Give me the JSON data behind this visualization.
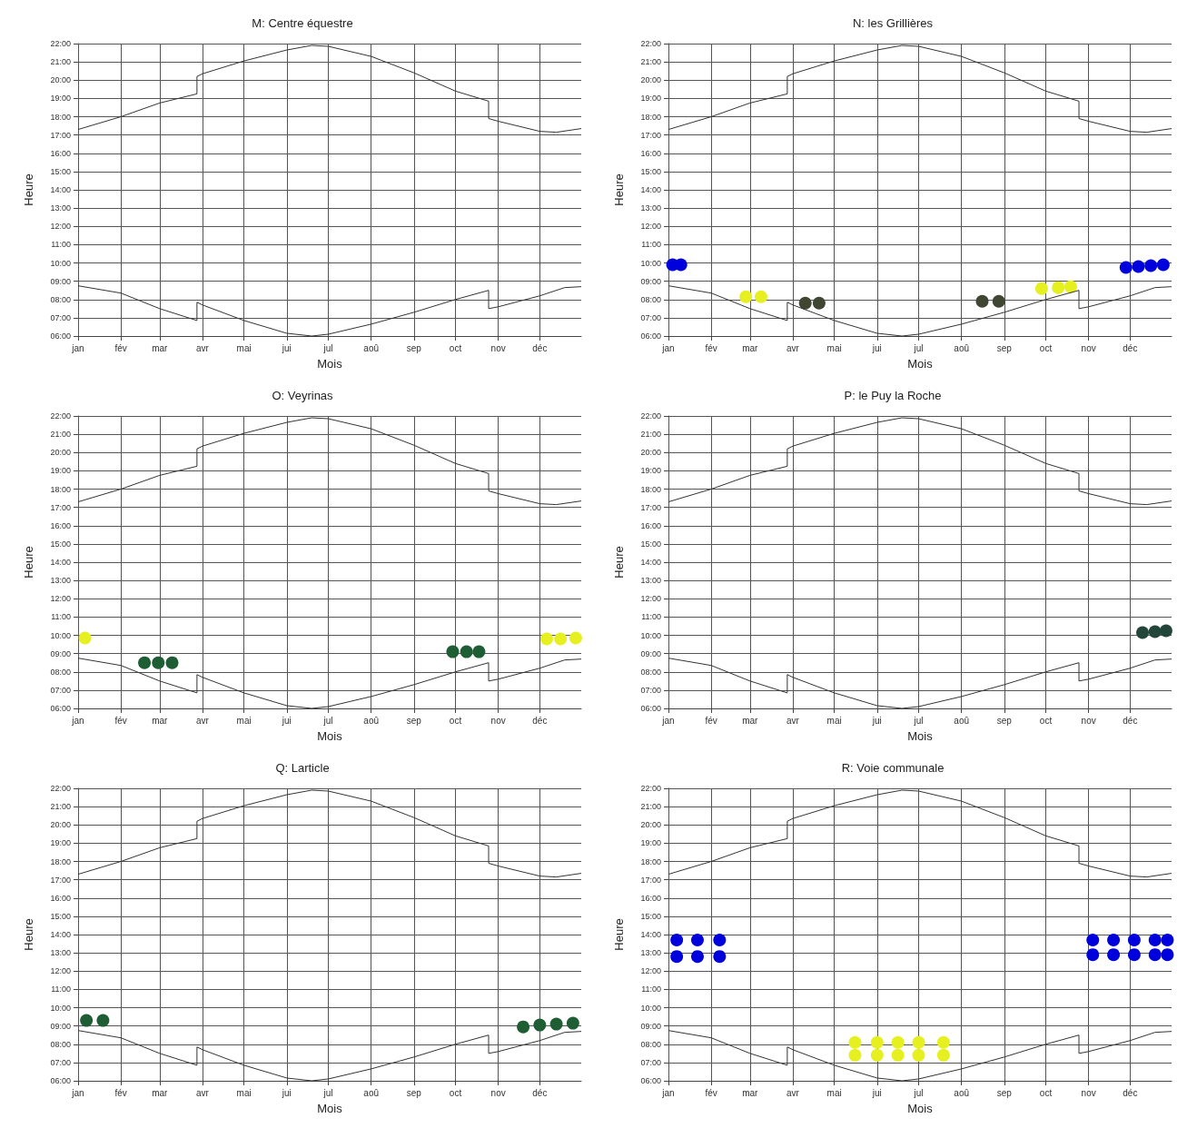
{
  "chart_data": [
    {
      "type": "line",
      "title": "M: Centre équestre",
      "xlabel": "Mois",
      "ylabel": "Heure",
      "grid": true,
      "xlim": [
        "--01-01",
        "--12-31"
      ],
      "xticks": [
        {
          "value": "--01-01",
          "label": "jan"
        },
        {
          "value": "--02-01",
          "label": "fév"
        },
        {
          "value": "--03-01",
          "label": "mar"
        },
        {
          "value": "--04-01",
          "label": "avr"
        },
        {
          "value": "--05-01",
          "label": "mai"
        },
        {
          "value": "--06-01",
          "label": "jui"
        },
        {
          "value": "--07-01",
          "label": "jul"
        },
        {
          "value": "--08-01",
          "label": "aoû"
        },
        {
          "value": "--09-01",
          "label": "sep"
        },
        {
          "value": "--10-01",
          "label": "oct"
        },
        {
          "value": "--11-01",
          "label": "nov"
        },
        {
          "value": "--12-01",
          "label": "déc"
        }
      ],
      "ylim": [
        6,
        22
      ],
      "yticks": [
        {
          "value": 6,
          "label": "06:00"
        },
        {
          "value": 7,
          "label": "07:00"
        },
        {
          "value": 8,
          "label": "08:00"
        },
        {
          "value": 9,
          "label": "09:00"
        },
        {
          "value": 10,
          "label": "10:00"
        },
        {
          "value": 11,
          "label": "11:00"
        },
        {
          "value": 12,
          "label": "12:00"
        },
        {
          "value": 13,
          "label": "13:00"
        },
        {
          "value": 14,
          "label": "14:00"
        },
        {
          "value": 15,
          "label": "15:00"
        },
        {
          "value": 16,
          "label": "16:00"
        },
        {
          "value": 17,
          "label": "17:00"
        },
        {
          "value": 18,
          "label": "18:00"
        },
        {
          "value": 19,
          "label": "19:00"
        },
        {
          "value": 20,
          "label": "20:00"
        },
        {
          "value": 21,
          "label": "21:00"
        },
        {
          "value": 22,
          "label": "22:00"
        }
      ],
      "series": [
        {
          "type": "line",
          "color": "#333333",
          "marker": "none",
          "x": [
            "--01-01",
            "--02-01",
            "--03-01",
            "--03-28",
            "--03-28",
            "--04-01",
            "--05-01",
            "--06-01",
            "--06-19",
            "--07-01",
            "--08-01",
            "--09-01",
            "--10-01",
            "--10-25",
            "--10-25",
            "--11-01",
            "--12-01",
            "--12-13",
            "--12-31"
          ],
          "values": [
            17.3,
            18.0,
            18.75,
            19.25,
            20.2,
            20.35,
            21.05,
            21.65,
            21.9,
            21.85,
            21.3,
            20.4,
            19.4,
            18.85,
            17.9,
            17.75,
            17.2,
            17.15,
            17.35
          ]
        },
        {
          "type": "line",
          "color": "#333333",
          "marker": "none",
          "x": [
            "--01-01",
            "--02-01",
            "--03-01",
            "--03-28",
            "--03-28",
            "--04-01",
            "--05-01",
            "--06-01",
            "--06-19",
            "--07-01",
            "--08-01",
            "--09-01",
            "--10-01",
            "--10-25",
            "--10-25",
            "--11-01",
            "--12-01",
            "--12-19",
            "--12-31"
          ],
          "values": [
            8.75,
            8.35,
            7.5,
            6.85,
            7.85,
            7.7,
            6.85,
            6.15,
            6.0,
            6.1,
            6.65,
            7.3,
            8.0,
            8.5,
            7.5,
            7.6,
            8.2,
            8.65,
            8.7
          ]
        }
      ]
    },
    {
      "type": "line",
      "title": "N: les Grillières",
      "xlabel": "Mois",
      "ylabel": "Heure",
      "grid": true,
      "xlim": [
        "--01-01",
        "--12-31"
      ],
      "xticks": [
        {
          "value": "--01-01",
          "label": "jan"
        },
        {
          "value": "--02-01",
          "label": "fév"
        },
        {
          "value": "--03-01",
          "label": "mar"
        },
        {
          "value": "--04-01",
          "label": "avr"
        },
        {
          "value": "--05-01",
          "label": "mai"
        },
        {
          "value": "--06-01",
          "label": "jui"
        },
        {
          "value": "--07-01",
          "label": "jul"
        },
        {
          "value": "--08-01",
          "label": "aoû"
        },
        {
          "value": "--09-01",
          "label": "sep"
        },
        {
          "value": "--10-01",
          "label": "oct"
        },
        {
          "value": "--11-01",
          "label": "nov"
        },
        {
          "value": "--12-01",
          "label": "déc"
        }
      ],
      "ylim": [
        6,
        22
      ],
      "yticks": [
        {
          "value": 6,
          "label": "06:00"
        },
        {
          "value": 7,
          "label": "07:00"
        },
        {
          "value": 8,
          "label": "08:00"
        },
        {
          "value": 9,
          "label": "09:00"
        },
        {
          "value": 10,
          "label": "10:00"
        },
        {
          "value": 11,
          "label": "11:00"
        },
        {
          "value": 12,
          "label": "12:00"
        },
        {
          "value": 13,
          "label": "13:00"
        },
        {
          "value": 14,
          "label": "14:00"
        },
        {
          "value": 15,
          "label": "15:00"
        },
        {
          "value": 16,
          "label": "16:00"
        },
        {
          "value": 17,
          "label": "17:00"
        },
        {
          "value": 18,
          "label": "18:00"
        },
        {
          "value": 19,
          "label": "19:00"
        },
        {
          "value": 20,
          "label": "20:00"
        },
        {
          "value": 21,
          "label": "21:00"
        },
        {
          "value": 22,
          "label": "22:00"
        }
      ],
      "series": [
        {
          "type": "line",
          "color": "#333333",
          "marker": "none",
          "x": [
            "--01-01",
            "--02-01",
            "--03-01",
            "--03-28",
            "--03-28",
            "--04-01",
            "--05-01",
            "--06-01",
            "--06-19",
            "--07-01",
            "--08-01",
            "--09-01",
            "--10-01",
            "--10-25",
            "--10-25",
            "--11-01",
            "--12-01",
            "--12-13",
            "--12-31"
          ],
          "values": [
            17.3,
            18.0,
            18.75,
            19.25,
            20.2,
            20.35,
            21.05,
            21.65,
            21.9,
            21.85,
            21.3,
            20.4,
            19.4,
            18.85,
            17.9,
            17.75,
            17.2,
            17.15,
            17.35
          ]
        },
        {
          "type": "line",
          "color": "#333333",
          "marker": "none",
          "x": [
            "--01-01",
            "--02-01",
            "--03-01",
            "--03-28",
            "--03-28",
            "--04-01",
            "--05-01",
            "--06-01",
            "--06-19",
            "--07-01",
            "--08-01",
            "--09-01",
            "--10-01",
            "--10-25",
            "--10-25",
            "--11-01",
            "--12-01",
            "--12-19",
            "--12-31"
          ],
          "values": [
            8.75,
            8.35,
            7.5,
            6.85,
            7.85,
            7.7,
            6.85,
            6.15,
            6.0,
            6.1,
            6.65,
            7.3,
            8.0,
            8.5,
            7.5,
            7.6,
            8.2,
            8.65,
            8.7
          ]
        },
        {
          "type": "scatter",
          "color": "#0000dd",
          "marker": "circle",
          "x": [
            "--01-04",
            "--01-10",
            "--11-28",
            "--12-07",
            "--12-16",
            "--12-25"
          ],
          "values": [
            9.9,
            9.9,
            9.75,
            9.8,
            9.85,
            9.9
          ]
        },
        {
          "type": "scatter",
          "color": "#e6f020",
          "marker": "circle",
          "x": [
            "--02-26",
            "--03-09",
            "--09-28",
            "--10-10",
            "--10-19"
          ],
          "values": [
            8.15,
            8.15,
            8.6,
            8.65,
            8.7
          ]
        },
        {
          "type": "scatter",
          "color": "#3f4632",
          "marker": "circle",
          "x": [
            "--04-10",
            "--04-20",
            "--08-16",
            "--08-28"
          ],
          "values": [
            7.8,
            7.8,
            7.9,
            7.9
          ]
        }
      ]
    },
    {
      "type": "line",
      "title": "O: Veyrinas",
      "xlabel": "Mois",
      "ylabel": "Heure",
      "grid": true,
      "xlim": [
        "--01-01",
        "--12-31"
      ],
      "xticks": [
        {
          "value": "--01-01",
          "label": "jan"
        },
        {
          "value": "--02-01",
          "label": "fév"
        },
        {
          "value": "--03-01",
          "label": "mar"
        },
        {
          "value": "--04-01",
          "label": "avr"
        },
        {
          "value": "--05-01",
          "label": "mai"
        },
        {
          "value": "--06-01",
          "label": "jui"
        },
        {
          "value": "--07-01",
          "label": "jul"
        },
        {
          "value": "--08-01",
          "label": "aoû"
        },
        {
          "value": "--09-01",
          "label": "sep"
        },
        {
          "value": "--10-01",
          "label": "oct"
        },
        {
          "value": "--11-01",
          "label": "nov"
        },
        {
          "value": "--12-01",
          "label": "déc"
        }
      ],
      "ylim": [
        6,
        22
      ],
      "yticks": [
        {
          "value": 6,
          "label": "06:00"
        },
        {
          "value": 7,
          "label": "07:00"
        },
        {
          "value": 8,
          "label": "08:00"
        },
        {
          "value": 9,
          "label": "09:00"
        },
        {
          "value": 10,
          "label": "10:00"
        },
        {
          "value": 11,
          "label": "11:00"
        },
        {
          "value": 12,
          "label": "12:00"
        },
        {
          "value": 13,
          "label": "13:00"
        },
        {
          "value": 14,
          "label": "14:00"
        },
        {
          "value": 15,
          "label": "15:00"
        },
        {
          "value": 16,
          "label": "16:00"
        },
        {
          "value": 17,
          "label": "17:00"
        },
        {
          "value": 18,
          "label": "18:00"
        },
        {
          "value": 19,
          "label": "19:00"
        },
        {
          "value": 20,
          "label": "20:00"
        },
        {
          "value": 21,
          "label": "21:00"
        },
        {
          "value": 22,
          "label": "22:00"
        }
      ],
      "series": [
        {
          "type": "line",
          "color": "#333333",
          "marker": "none",
          "x": [
            "--01-01",
            "--02-01",
            "--03-01",
            "--03-28",
            "--03-28",
            "--04-01",
            "--05-01",
            "--06-01",
            "--06-19",
            "--07-01",
            "--08-01",
            "--09-01",
            "--10-01",
            "--10-25",
            "--10-25",
            "--11-01",
            "--12-01",
            "--12-13",
            "--12-31"
          ],
          "values": [
            17.3,
            18.0,
            18.75,
            19.25,
            20.2,
            20.35,
            21.05,
            21.65,
            21.9,
            21.85,
            21.3,
            20.4,
            19.4,
            18.85,
            17.9,
            17.75,
            17.2,
            17.15,
            17.35
          ]
        },
        {
          "type": "line",
          "color": "#333333",
          "marker": "none",
          "x": [
            "--01-01",
            "--02-01",
            "--03-01",
            "--03-28",
            "--03-28",
            "--04-01",
            "--05-01",
            "--06-01",
            "--06-19",
            "--07-01",
            "--08-01",
            "--09-01",
            "--10-01",
            "--10-25",
            "--10-25",
            "--11-01",
            "--12-01",
            "--12-19",
            "--12-31"
          ],
          "values": [
            8.75,
            8.35,
            7.5,
            6.85,
            7.85,
            7.7,
            6.85,
            6.15,
            6.0,
            6.1,
            6.65,
            7.3,
            8.0,
            8.5,
            7.5,
            7.6,
            8.2,
            8.65,
            8.7
          ]
        },
        {
          "type": "scatter",
          "color": "#e6f020",
          "marker": "circle",
          "x": [
            "--01-06",
            "--12-06",
            "--12-16",
            "--12-27"
          ],
          "values": [
            9.85,
            9.8,
            9.8,
            9.85
          ]
        },
        {
          "type": "scatter",
          "color": "#1f5e34",
          "marker": "circle",
          "x": [
            "--02-18",
            "--02-28",
            "--03-10",
            "--09-29",
            "--10-09",
            "--10-18"
          ],
          "values": [
            8.5,
            8.5,
            8.5,
            9.1,
            9.1,
            9.1
          ]
        }
      ]
    },
    {
      "type": "line",
      "title": "P: le Puy la Roche",
      "xlabel": "Mois",
      "ylabel": "Heure",
      "grid": true,
      "xlim": [
        "--01-01",
        "--12-31"
      ],
      "xticks": [
        {
          "value": "--01-01",
          "label": "jan"
        },
        {
          "value": "--02-01",
          "label": "fév"
        },
        {
          "value": "--03-01",
          "label": "mar"
        },
        {
          "value": "--04-01",
          "label": "avr"
        },
        {
          "value": "--05-01",
          "label": "mai"
        },
        {
          "value": "--06-01",
          "label": "jui"
        },
        {
          "value": "--07-01",
          "label": "jul"
        },
        {
          "value": "--08-01",
          "label": "aoû"
        },
        {
          "value": "--09-01",
          "label": "sep"
        },
        {
          "value": "--10-01",
          "label": "oct"
        },
        {
          "value": "--11-01",
          "label": "nov"
        },
        {
          "value": "--12-01",
          "label": "déc"
        }
      ],
      "ylim": [
        6,
        22
      ],
      "yticks": [
        {
          "value": 6,
          "label": "06:00"
        },
        {
          "value": 7,
          "label": "07:00"
        },
        {
          "value": 8,
          "label": "08:00"
        },
        {
          "value": 9,
          "label": "09:00"
        },
        {
          "value": 10,
          "label": "10:00"
        },
        {
          "value": 11,
          "label": "11:00"
        },
        {
          "value": 12,
          "label": "12:00"
        },
        {
          "value": 13,
          "label": "13:00"
        },
        {
          "value": 14,
          "label": "14:00"
        },
        {
          "value": 15,
          "label": "15:00"
        },
        {
          "value": 16,
          "label": "16:00"
        },
        {
          "value": 17,
          "label": "17:00"
        },
        {
          "value": 18,
          "label": "18:00"
        },
        {
          "value": 19,
          "label": "19:00"
        },
        {
          "value": 20,
          "label": "20:00"
        },
        {
          "value": 21,
          "label": "21:00"
        },
        {
          "value": 22,
          "label": "22:00"
        }
      ],
      "series": [
        {
          "type": "line",
          "color": "#333333",
          "marker": "none",
          "x": [
            "--01-01",
            "--02-01",
            "--03-01",
            "--03-28",
            "--03-28",
            "--04-01",
            "--05-01",
            "--06-01",
            "--06-19",
            "--07-01",
            "--08-01",
            "--09-01",
            "--10-01",
            "--10-25",
            "--10-25",
            "--11-01",
            "--12-01",
            "--12-13",
            "--12-31"
          ],
          "values": [
            17.3,
            18.0,
            18.75,
            19.25,
            20.2,
            20.35,
            21.05,
            21.65,
            21.9,
            21.85,
            21.3,
            20.4,
            19.4,
            18.85,
            17.9,
            17.75,
            17.2,
            17.15,
            17.35
          ]
        },
        {
          "type": "line",
          "color": "#333333",
          "marker": "none",
          "x": [
            "--01-01",
            "--02-01",
            "--03-01",
            "--03-28",
            "--03-28",
            "--04-01",
            "--05-01",
            "--06-01",
            "--06-19",
            "--07-01",
            "--08-01",
            "--09-01",
            "--10-01",
            "--10-25",
            "--10-25",
            "--11-01",
            "--12-01",
            "--12-19",
            "--12-31"
          ],
          "values": [
            8.75,
            8.35,
            7.5,
            6.85,
            7.85,
            7.7,
            6.85,
            6.15,
            6.0,
            6.1,
            6.65,
            7.3,
            8.0,
            8.5,
            7.5,
            7.6,
            8.2,
            8.65,
            8.7
          ]
        },
        {
          "type": "scatter",
          "color": "#24463a",
          "marker": "circle",
          "x": [
            "--12-10",
            "--12-19",
            "--12-27"
          ],
          "values": [
            10.15,
            10.2,
            10.25
          ]
        }
      ]
    },
    {
      "type": "line",
      "title": "Q: Larticle",
      "xlabel": "Mois",
      "ylabel": "Heure",
      "grid": true,
      "xlim": [
        "--01-01",
        "--12-31"
      ],
      "xticks": [
        {
          "value": "--01-01",
          "label": "jan"
        },
        {
          "value": "--02-01",
          "label": "fév"
        },
        {
          "value": "--03-01",
          "label": "mar"
        },
        {
          "value": "--04-01",
          "label": "avr"
        },
        {
          "value": "--05-01",
          "label": "mai"
        },
        {
          "value": "--06-01",
          "label": "jui"
        },
        {
          "value": "--07-01",
          "label": "jul"
        },
        {
          "value": "--08-01",
          "label": "aoû"
        },
        {
          "value": "--09-01",
          "label": "sep"
        },
        {
          "value": "--10-01",
          "label": "oct"
        },
        {
          "value": "--11-01",
          "label": "nov"
        },
        {
          "value": "--12-01",
          "label": "déc"
        }
      ],
      "ylim": [
        6,
        22
      ],
      "yticks": [
        {
          "value": 6,
          "label": "06:00"
        },
        {
          "value": 7,
          "label": "07:00"
        },
        {
          "value": 8,
          "label": "08:00"
        },
        {
          "value": 9,
          "label": "09:00"
        },
        {
          "value": 10,
          "label": "10:00"
        },
        {
          "value": 11,
          "label": "11:00"
        },
        {
          "value": 12,
          "label": "12:00"
        },
        {
          "value": 13,
          "label": "13:00"
        },
        {
          "value": 14,
          "label": "14:00"
        },
        {
          "value": 15,
          "label": "15:00"
        },
        {
          "value": 16,
          "label": "16:00"
        },
        {
          "value": 17,
          "label": "17:00"
        },
        {
          "value": 18,
          "label": "18:00"
        },
        {
          "value": 19,
          "label": "19:00"
        },
        {
          "value": 20,
          "label": "20:00"
        },
        {
          "value": 21,
          "label": "21:00"
        },
        {
          "value": 22,
          "label": "22:00"
        }
      ],
      "series": [
        {
          "type": "line",
          "color": "#333333",
          "marker": "none",
          "x": [
            "--01-01",
            "--02-01",
            "--03-01",
            "--03-28",
            "--03-28",
            "--04-01",
            "--05-01",
            "--06-01",
            "--06-19",
            "--07-01",
            "--08-01",
            "--09-01",
            "--10-01",
            "--10-25",
            "--10-25",
            "--11-01",
            "--12-01",
            "--12-13",
            "--12-31"
          ],
          "values": [
            17.3,
            18.0,
            18.75,
            19.25,
            20.2,
            20.35,
            21.05,
            21.65,
            21.9,
            21.85,
            21.3,
            20.4,
            19.4,
            18.85,
            17.9,
            17.75,
            17.2,
            17.15,
            17.35
          ]
        },
        {
          "type": "line",
          "color": "#333333",
          "marker": "none",
          "x": [
            "--01-01",
            "--02-01",
            "--03-01",
            "--03-28",
            "--03-28",
            "--04-01",
            "--05-01",
            "--06-01",
            "--06-19",
            "--07-01",
            "--08-01",
            "--09-01",
            "--10-01",
            "--10-25",
            "--10-25",
            "--11-01",
            "--12-01",
            "--12-19",
            "--12-31"
          ],
          "values": [
            8.75,
            8.35,
            7.5,
            6.85,
            7.85,
            7.7,
            6.85,
            6.15,
            6.0,
            6.1,
            6.65,
            7.3,
            8.0,
            8.5,
            7.5,
            7.6,
            8.2,
            8.65,
            8.7
          ]
        },
        {
          "type": "scatter",
          "color": "#1f5e34",
          "marker": "circle",
          "x": [
            "--01-07",
            "--01-19",
            "--11-19",
            "--12-01",
            "--12-13",
            "--12-25"
          ],
          "values": [
            9.3,
            9.3,
            8.95,
            9.05,
            9.1,
            9.15
          ]
        }
      ]
    },
    {
      "type": "line",
      "title": "R: Voie communale",
      "xlabel": "Mois",
      "ylabel": "Heure",
      "grid": true,
      "xlim": [
        "--01-01",
        "--12-31"
      ],
      "xticks": [
        {
          "value": "--01-01",
          "label": "jan"
        },
        {
          "value": "--02-01",
          "label": "fév"
        },
        {
          "value": "--03-01",
          "label": "mar"
        },
        {
          "value": "--04-01",
          "label": "avr"
        },
        {
          "value": "--05-01",
          "label": "mai"
        },
        {
          "value": "--06-01",
          "label": "jui"
        },
        {
          "value": "--07-01",
          "label": "jul"
        },
        {
          "value": "--08-01",
          "label": "aoû"
        },
        {
          "value": "--09-01",
          "label": "sep"
        },
        {
          "value": "--10-01",
          "label": "oct"
        },
        {
          "value": "--11-01",
          "label": "nov"
        },
        {
          "value": "--12-01",
          "label": "déc"
        }
      ],
      "ylim": [
        6,
        22
      ],
      "yticks": [
        {
          "value": 6,
          "label": "06:00"
        },
        {
          "value": 7,
          "label": "07:00"
        },
        {
          "value": 8,
          "label": "08:00"
        },
        {
          "value": 9,
          "label": "09:00"
        },
        {
          "value": 10,
          "label": "10:00"
        },
        {
          "value": 11,
          "label": "11:00"
        },
        {
          "value": 12,
          "label": "12:00"
        },
        {
          "value": 13,
          "label": "13:00"
        },
        {
          "value": 14,
          "label": "14:00"
        },
        {
          "value": 15,
          "label": "15:00"
        },
        {
          "value": 16,
          "label": "16:00"
        },
        {
          "value": 17,
          "label": "17:00"
        },
        {
          "value": 18,
          "label": "18:00"
        },
        {
          "value": 19,
          "label": "19:00"
        },
        {
          "value": 20,
          "label": "20:00"
        },
        {
          "value": 21,
          "label": "21:00"
        },
        {
          "value": 22,
          "label": "22:00"
        }
      ],
      "series": [
        {
          "type": "line",
          "color": "#333333",
          "marker": "none",
          "x": [
            "--01-01",
            "--02-01",
            "--03-01",
            "--03-28",
            "--03-28",
            "--04-01",
            "--05-01",
            "--06-01",
            "--06-19",
            "--07-01",
            "--08-01",
            "--09-01",
            "--10-01",
            "--10-25",
            "--10-25",
            "--11-01",
            "--12-01",
            "--12-13",
            "--12-31"
          ],
          "values": [
            17.3,
            18.0,
            18.75,
            19.25,
            20.2,
            20.35,
            21.05,
            21.65,
            21.9,
            21.85,
            21.3,
            20.4,
            19.4,
            18.85,
            17.9,
            17.75,
            17.2,
            17.15,
            17.35
          ]
        },
        {
          "type": "line",
          "color": "#333333",
          "marker": "none",
          "x": [
            "--01-01",
            "--02-01",
            "--03-01",
            "--03-28",
            "--03-28",
            "--04-01",
            "--05-01",
            "--06-01",
            "--06-19",
            "--07-01",
            "--08-01",
            "--09-01",
            "--10-01",
            "--10-25",
            "--10-25",
            "--11-01",
            "--12-01",
            "--12-19",
            "--12-31"
          ],
          "values": [
            8.75,
            8.35,
            7.5,
            6.85,
            7.85,
            7.7,
            6.85,
            6.15,
            6.0,
            6.1,
            6.65,
            7.3,
            8.0,
            8.5,
            7.5,
            7.6,
            8.2,
            8.65,
            8.7
          ]
        },
        {
          "type": "scatter",
          "color": "#0000dd",
          "marker": "circle",
          "x": [
            "--01-07",
            "--01-07",
            "--01-22",
            "--01-22",
            "--02-07",
            "--02-07",
            "--11-04",
            "--11-04",
            "--11-19",
            "--11-19",
            "--12-04",
            "--12-04",
            "--12-19",
            "--12-19",
            "--12-28",
            "--12-28"
          ],
          "values": [
            12.8,
            13.7,
            12.8,
            13.7,
            12.8,
            13.7,
            12.9,
            13.7,
            12.9,
            13.7,
            12.9,
            13.7,
            12.9,
            13.7,
            12.9,
            13.7
          ]
        },
        {
          "type": "scatter",
          "color": "#e6f020",
          "marker": "circle",
          "x": [
            "--05-16",
            "--05-16",
            "--06-01",
            "--06-01",
            "--06-16",
            "--06-16",
            "--07-01",
            "--07-01",
            "--07-19",
            "--07-19"
          ],
          "values": [
            7.4,
            8.1,
            7.4,
            8.1,
            7.4,
            8.1,
            7.4,
            8.1,
            7.4,
            8.1
          ]
        }
      ]
    }
  ]
}
